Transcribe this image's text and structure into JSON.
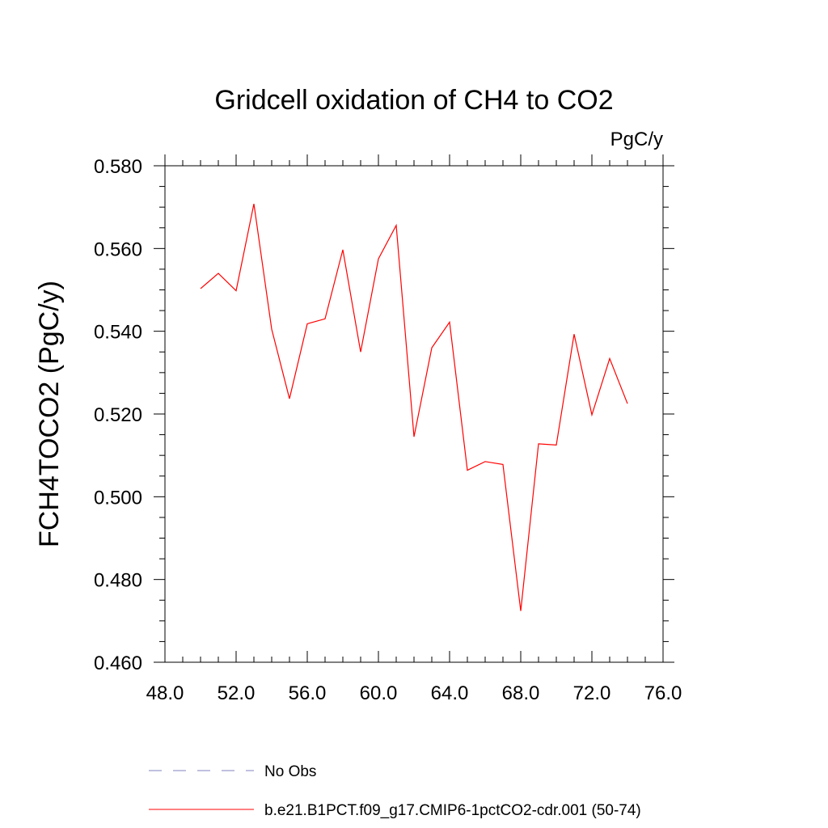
{
  "chart_data": {
    "type": "line",
    "title": "Gridcell oxidation of CH4 to CO2",
    "units_label": "PgC/y",
    "ylabel": "FCH4TOCO2  (PgC/y)",
    "xlabel": "",
    "xlim": [
      48.0,
      76.0
    ],
    "ylim": [
      0.46,
      0.58
    ],
    "x_ticks": [
      48.0,
      52.0,
      56.0,
      60.0,
      64.0,
      68.0,
      72.0,
      76.0
    ],
    "x_tick_labels": [
      "48.0",
      "52.0",
      "56.0",
      "60.0",
      "64.0",
      "68.0",
      "72.0",
      "76.0"
    ],
    "y_ticks": [
      0.46,
      0.48,
      0.5,
      0.52,
      0.54,
      0.56,
      0.58
    ],
    "y_tick_labels": [
      "0.460",
      "0.480",
      "0.500",
      "0.520",
      "0.540",
      "0.560",
      "0.580"
    ],
    "x_minor_step": 1.0,
    "y_minor_step": 0.005,
    "series": [
      {
        "name": "b.e21.B1PCT.f09_g17.CMIP6-1pctCO2-cdr.001 (50-74)",
        "color": "#ff0000",
        "style": "solid",
        "x": [
          50,
          51,
          52,
          53,
          54,
          55,
          56,
          57,
          58,
          59,
          60,
          61,
          62,
          63,
          64,
          65,
          66,
          67,
          68,
          69,
          70,
          71,
          72,
          73,
          74
        ],
        "values": [
          0.5503,
          0.554,
          0.5498,
          0.5708,
          0.5405,
          0.5237,
          0.5418,
          0.543,
          0.5597,
          0.535,
          0.5575,
          0.5656,
          0.5145,
          0.536,
          0.5422,
          0.5064,
          0.5085,
          0.5078,
          0.4724,
          0.5128,
          0.5125,
          0.5393,
          0.5198,
          0.5334,
          0.5225
        ]
      }
    ],
    "legend": [
      {
        "label": "No Obs",
        "color": "#8080c0",
        "style": "dashed"
      },
      {
        "label": "b.e21.B1PCT.f09_g17.CMIP6-1pctCO2-cdr.001 (50-74)",
        "color": "#ff0000",
        "style": "solid"
      }
    ],
    "legend_position": "bottom"
  }
}
